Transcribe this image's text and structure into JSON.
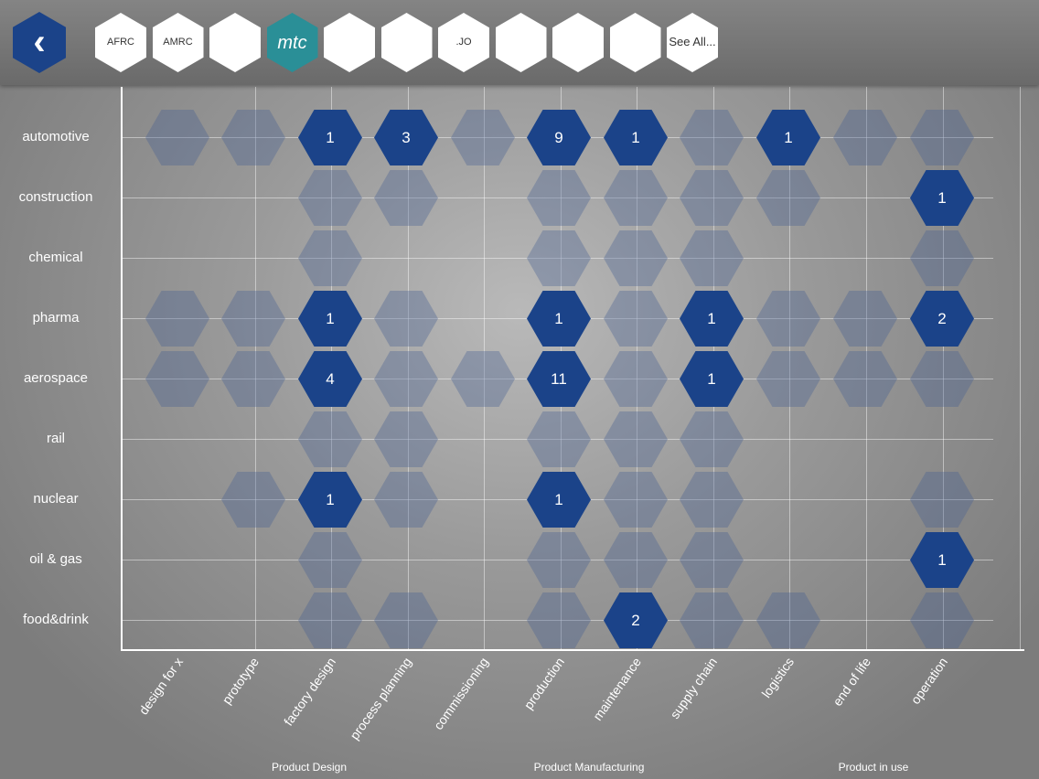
{
  "header": {
    "back_icon": "chevron-left-icon",
    "logos": [
      {
        "name": "afrc",
        "label": "AFRC"
      },
      {
        "name": "amrc",
        "label": "AMRC"
      },
      {
        "name": "catapult-swirl",
        "label": ""
      },
      {
        "name": "mtc",
        "label": "mtc",
        "selected": true
      },
      {
        "name": "circle-arrow",
        "label": ""
      },
      {
        "name": "concentric-arc",
        "label": ""
      },
      {
        "name": "dots",
        "label": ".JO"
      },
      {
        "name": "star-prism",
        "label": ""
      },
      {
        "name": "castle",
        "label": ""
      },
      {
        "name": "colour-swirl",
        "label": ""
      },
      {
        "name": "see-all",
        "label": "See All..."
      }
    ]
  },
  "rows": [
    "automotive",
    "construction",
    "chemical",
    "pharma",
    "aerospace",
    "rail",
    "nuclear",
    "oil & gas",
    "food&drink"
  ],
  "columns": [
    "design for x",
    "prototype",
    "factory design",
    "process planning",
    "commissioning",
    "production",
    "maintenance",
    "supply chain",
    "logistics",
    "end of life",
    "operation"
  ],
  "groups": [
    {
      "label": "Product Design"
    },
    {
      "label": "Product Manufacturing"
    },
    {
      "label": "Product in use"
    }
  ],
  "cells": [
    [
      "",
      "",
      1,
      3,
      "",
      9,
      1,
      "",
      1,
      "",
      ""
    ],
    [
      null,
      null,
      "",
      "",
      null,
      "",
      "",
      "",
      "",
      null,
      1
    ],
    [
      null,
      null,
      "",
      null,
      null,
      "",
      "",
      "",
      null,
      null,
      ""
    ],
    [
      "",
      "",
      1,
      "",
      null,
      1,
      "",
      1,
      "",
      "",
      2
    ],
    [
      "",
      "",
      4,
      "",
      "",
      11,
      "",
      1,
      "",
      "",
      ""
    ],
    [
      null,
      null,
      "",
      "",
      null,
      "",
      "",
      "",
      null,
      null,
      null
    ],
    [
      null,
      "",
      1,
      "",
      null,
      1,
      "",
      "",
      null,
      null,
      ""
    ],
    [
      null,
      null,
      "",
      null,
      null,
      "",
      "",
      "",
      null,
      null,
      1
    ],
    [
      null,
      null,
      "",
      "",
      null,
      "",
      2,
      "",
      "",
      null,
      ""
    ]
  ],
  "colors": {
    "accent": "#1b4389",
    "selected_logo": "#2a8f97"
  }
}
